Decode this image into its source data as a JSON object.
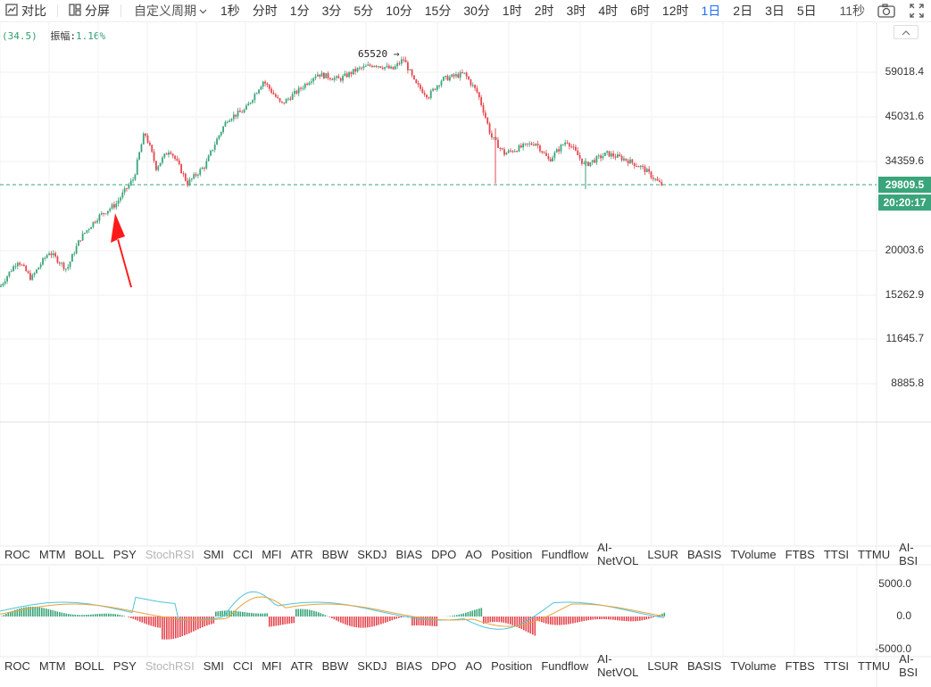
{
  "toolbar": {
    "compare_label": "对比",
    "split_label": "分屏",
    "custom_period_label": "自定义周期",
    "periods": [
      "1秒",
      "分时",
      "1分",
      "3分",
      "5分",
      "10分",
      "15分",
      "30分",
      "1时",
      "2时",
      "3时",
      "4时",
      "6时",
      "12时",
      "1日",
      "2日",
      "3日",
      "5日"
    ],
    "active_period": "1日",
    "countdown": "11秒"
  },
  "infobar": {
    "value": "(34.5)",
    "amplitude_label": "振幅:",
    "amplitude_value": "1.16%"
  },
  "price_axis": {
    "labels": [
      "59018.4",
      "45031.6",
      "34359.6",
      "20003.6",
      "15262.9",
      "11645.7",
      "8885.8"
    ],
    "current_price": "29809.5",
    "current_time": "20:20:17"
  },
  "annotation": {
    "high_label": "65520 →"
  },
  "indicators": {
    "tabs": [
      "ROC",
      "MTM",
      "BOLL",
      "PSY",
      "StochRSI",
      "SMI",
      "CCI",
      "MFI",
      "ATR",
      "BBW",
      "SKDJ",
      "BIAS",
      "DPO",
      "AO",
      "Position",
      "Fundflow",
      "AI-NetVOL",
      "LSUR",
      "BASIS",
      "TVolume",
      "FTBS",
      "TTSI",
      "TTMU",
      "AI-BSI"
    ],
    "dim_tab": "StochRSI"
  },
  "macd_axis": {
    "labels": [
      "5000.0",
      "0.0",
      "-5000.0"
    ]
  },
  "colors": {
    "up": "#3aa57a",
    "down": "#e5474f",
    "active": "#1e6ff1",
    "current_line": "#3aa57a"
  },
  "chart_data": {
    "type": "candlestick",
    "price_axis_ticks": [
      59018.4,
      45031.6,
      34359.6,
      20003.6,
      15262.9,
      11645.7,
      8885.8
    ],
    "current_price": 29809.5,
    "high_marker": 65520,
    "macd_ticks": [
      5000,
      0,
      -5000
    ]
  }
}
